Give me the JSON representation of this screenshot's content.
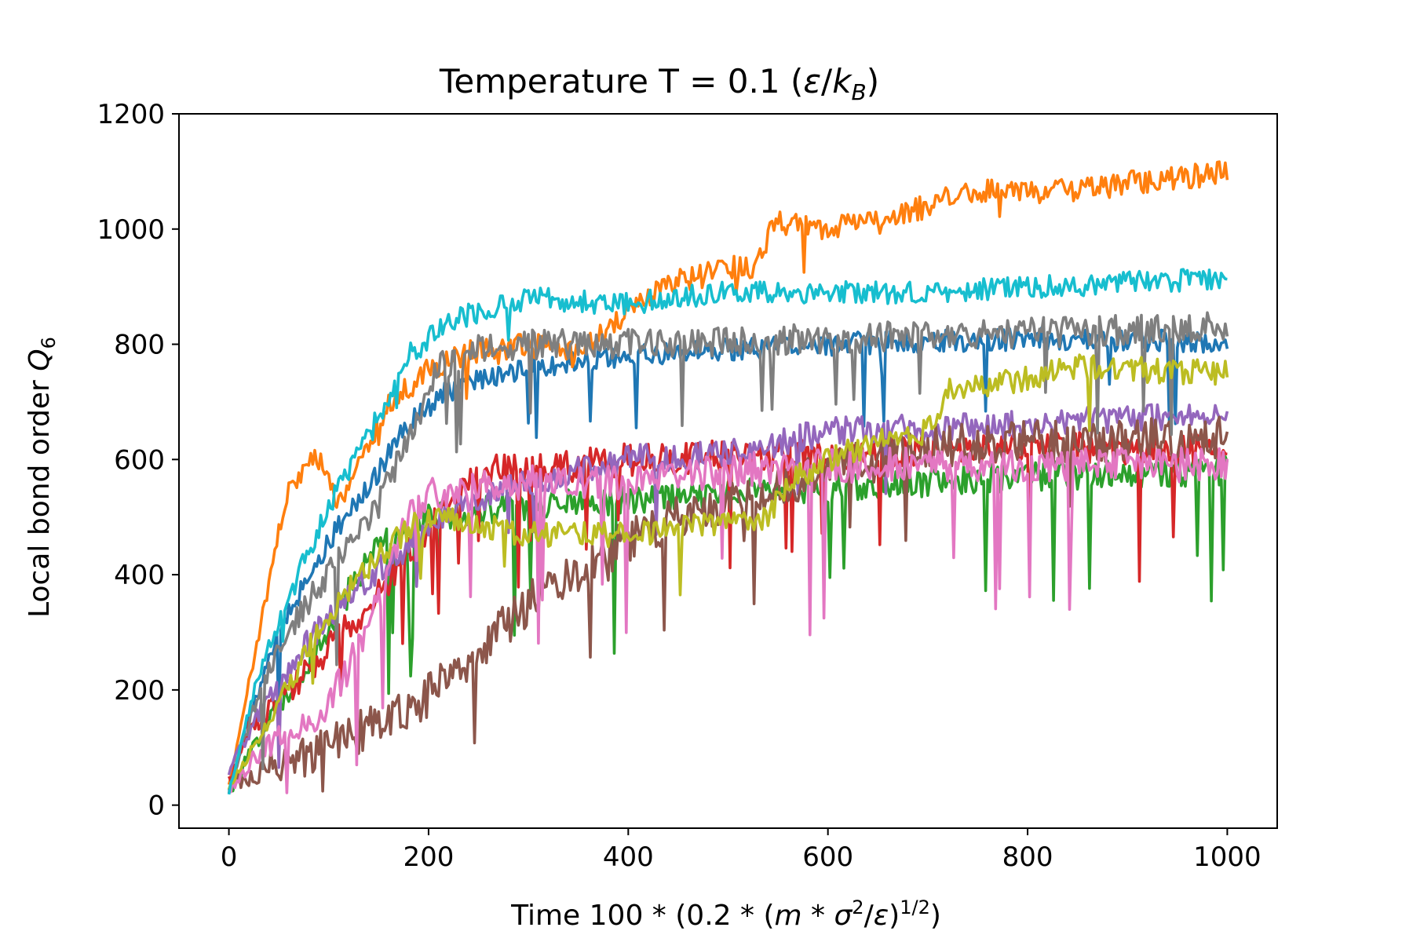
{
  "chart_data": {
    "type": "line",
    "title": "Temperature T = 0.1 (ε/k_B)",
    "title_parts": {
      "main": "Temperature T = 0.1 (",
      "eps": "ε",
      "slash": "/",
      "k": "k",
      "sub": "B",
      "close": ")"
    },
    "xlabel": "Time 100 * (0.2 * (m * σ²/ε)^{1/2})",
    "xlabel_parts": {
      "a": "Time 100",
      "star1": " * ",
      "b": "(0.2",
      "star2": " * ",
      "c": "(",
      "m": "m",
      "star3": " * ",
      "sigma": "σ",
      "sq": "2",
      "d": "/",
      "eps": "ε",
      "e": ")",
      "pow": "1/2",
      "f": ")"
    },
    "ylabel": "Local bond order Q_6",
    "ylabel_parts": {
      "main": "Local bond order ",
      "q": "Q",
      "sub": "6"
    },
    "xlim": [
      -50,
      1050
    ],
    "ylim": [
      -40,
      1200
    ],
    "xticks": [
      0,
      200,
      400,
      600,
      800,
      1000
    ],
    "xtick_labels": [
      "0",
      "200",
      "400",
      "600",
      "800",
      "1000"
    ],
    "yticks": [
      0,
      200,
      400,
      600,
      800,
      1000,
      1200
    ],
    "ytick_labels": [
      "0",
      "200",
      "400",
      "600",
      "800",
      "1000",
      "1200"
    ],
    "grid": false,
    "series": [
      {
        "color": "#1f77b4",
        "noise": 20,
        "dip_rate": 0.025,
        "dip_depth": 130,
        "keypoints": [
          [
            0,
            20
          ],
          [
            20,
            150
          ],
          [
            50,
            300
          ],
          [
            100,
            460
          ],
          [
            150,
            580
          ],
          [
            180,
            660
          ],
          [
            220,
            720
          ],
          [
            300,
            760
          ],
          [
            400,
            780
          ],
          [
            600,
            800
          ],
          [
            800,
            810
          ],
          [
            1000,
            805
          ]
        ]
      },
      {
        "color": "#ff7f0e",
        "noise": 22,
        "dip_rate": 0.005,
        "dip_depth": 60,
        "keypoints": [
          [
            0,
            30
          ],
          [
            30,
            300
          ],
          [
            60,
            560
          ],
          [
            90,
            600
          ],
          [
            110,
            520
          ],
          [
            130,
            600
          ],
          [
            160,
            690
          ],
          [
            200,
            760
          ],
          [
            250,
            790
          ],
          [
            300,
            800
          ],
          [
            350,
            780
          ],
          [
            400,
            860
          ],
          [
            450,
            910
          ],
          [
            530,
            940
          ],
          [
            545,
            1010
          ],
          [
            600,
            1000
          ],
          [
            660,
            1010
          ],
          [
            700,
            1040
          ],
          [
            750,
            1070
          ],
          [
            800,
            1060
          ],
          [
            1000,
            1100
          ]
        ]
      },
      {
        "color": "#2ca02c",
        "noise": 25,
        "dip_rate": 0.03,
        "dip_depth": 230,
        "keypoints": [
          [
            0,
            20
          ],
          [
            40,
            150
          ],
          [
            80,
            250
          ],
          [
            120,
            370
          ],
          [
            150,
            450
          ],
          [
            200,
            500
          ],
          [
            300,
            520
          ],
          [
            400,
            530
          ],
          [
            600,
            550
          ],
          [
            800,
            570
          ],
          [
            1000,
            580
          ]
        ]
      },
      {
        "color": "#d62728",
        "noise": 28,
        "dip_rate": 0.02,
        "dip_depth": 180,
        "keypoints": [
          [
            0,
            40
          ],
          [
            20,
            130
          ],
          [
            60,
            200
          ],
          [
            100,
            270
          ],
          [
            150,
            370
          ],
          [
            200,
            480
          ],
          [
            250,
            580
          ],
          [
            300,
            580
          ],
          [
            400,
            600
          ],
          [
            600,
            610
          ],
          [
            800,
            620
          ],
          [
            1000,
            620
          ]
        ]
      },
      {
        "color": "#9467bd",
        "noise": 25,
        "dip_rate": 0.015,
        "dip_depth": 130,
        "keypoints": [
          [
            0,
            60
          ],
          [
            30,
            160
          ],
          [
            70,
            260
          ],
          [
            120,
            370
          ],
          [
            180,
            450
          ],
          [
            230,
            520
          ],
          [
            300,
            560
          ],
          [
            400,
            600
          ],
          [
            500,
            610
          ],
          [
            600,
            650
          ],
          [
            800,
            660
          ],
          [
            1000,
            680
          ]
        ]
      },
      {
        "color": "#8c564b",
        "noise": 38,
        "dip_rate": 0.025,
        "dip_depth": 160,
        "keypoints": [
          [
            0,
            30
          ],
          [
            40,
            70
          ],
          [
            80,
            80
          ],
          [
            120,
            120
          ],
          [
            160,
            150
          ],
          [
            200,
            190
          ],
          [
            250,
            270
          ],
          [
            300,
            350
          ],
          [
            350,
            410
          ],
          [
            400,
            460
          ],
          [
            450,
            500
          ],
          [
            500,
            520
          ],
          [
            550,
            550
          ],
          [
            600,
            580
          ],
          [
            700,
            620
          ],
          [
            800,
            630
          ],
          [
            1000,
            640
          ]
        ]
      },
      {
        "color": "#e377c2",
        "noise": 30,
        "dip_rate": 0.05,
        "dip_depth": 230,
        "keypoints": [
          [
            0,
            30
          ],
          [
            30,
            90
          ],
          [
            60,
            130
          ],
          [
            100,
            170
          ],
          [
            150,
            350
          ],
          [
            180,
            500
          ],
          [
            200,
            540
          ],
          [
            300,
            560
          ],
          [
            400,
            560
          ],
          [
            500,
            580
          ],
          [
            600,
            590
          ],
          [
            800,
            590
          ],
          [
            1000,
            590
          ]
        ]
      },
      {
        "color": "#7f7f7f",
        "noise": 26,
        "dip_rate": 0.025,
        "dip_depth": 140,
        "keypoints": [
          [
            0,
            30
          ],
          [
            30,
            200
          ],
          [
            70,
            330
          ],
          [
            110,
            430
          ],
          [
            150,
            520
          ],
          [
            180,
            640
          ],
          [
            210,
            760
          ],
          [
            250,
            790
          ],
          [
            300,
            800
          ],
          [
            400,
            800
          ],
          [
            600,
            810
          ],
          [
            800,
            820
          ],
          [
            1000,
            830
          ]
        ]
      },
      {
        "color": "#bcbd22",
        "noise": 22,
        "dip_rate": 0.008,
        "dip_depth": 100,
        "keypoints": [
          [
            0,
            30
          ],
          [
            40,
            150
          ],
          [
            90,
            300
          ],
          [
            130,
            400
          ],
          [
            180,
            480
          ],
          [
            200,
            500
          ],
          [
            300,
            470
          ],
          [
            400,
            470
          ],
          [
            500,
            490
          ],
          [
            540,
            500
          ],
          [
            560,
            560
          ],
          [
            600,
            600
          ],
          [
            650,
            630
          ],
          [
            700,
            650
          ],
          [
            720,
            720
          ],
          [
            800,
            740
          ],
          [
            850,
            760
          ],
          [
            1000,
            750
          ]
        ]
      },
      {
        "color": "#17becf",
        "noise": 20,
        "dip_rate": 0.004,
        "dip_depth": 60,
        "keypoints": [
          [
            0,
            20
          ],
          [
            30,
            230
          ],
          [
            60,
            360
          ],
          [
            100,
            520
          ],
          [
            140,
            640
          ],
          [
            180,
            780
          ],
          [
            220,
            840
          ],
          [
            300,
            880
          ],
          [
            400,
            870
          ],
          [
            500,
            890
          ],
          [
            600,
            890
          ],
          [
            700,
            890
          ],
          [
            800,
            900
          ],
          [
            1000,
            915
          ]
        ]
      }
    ]
  }
}
